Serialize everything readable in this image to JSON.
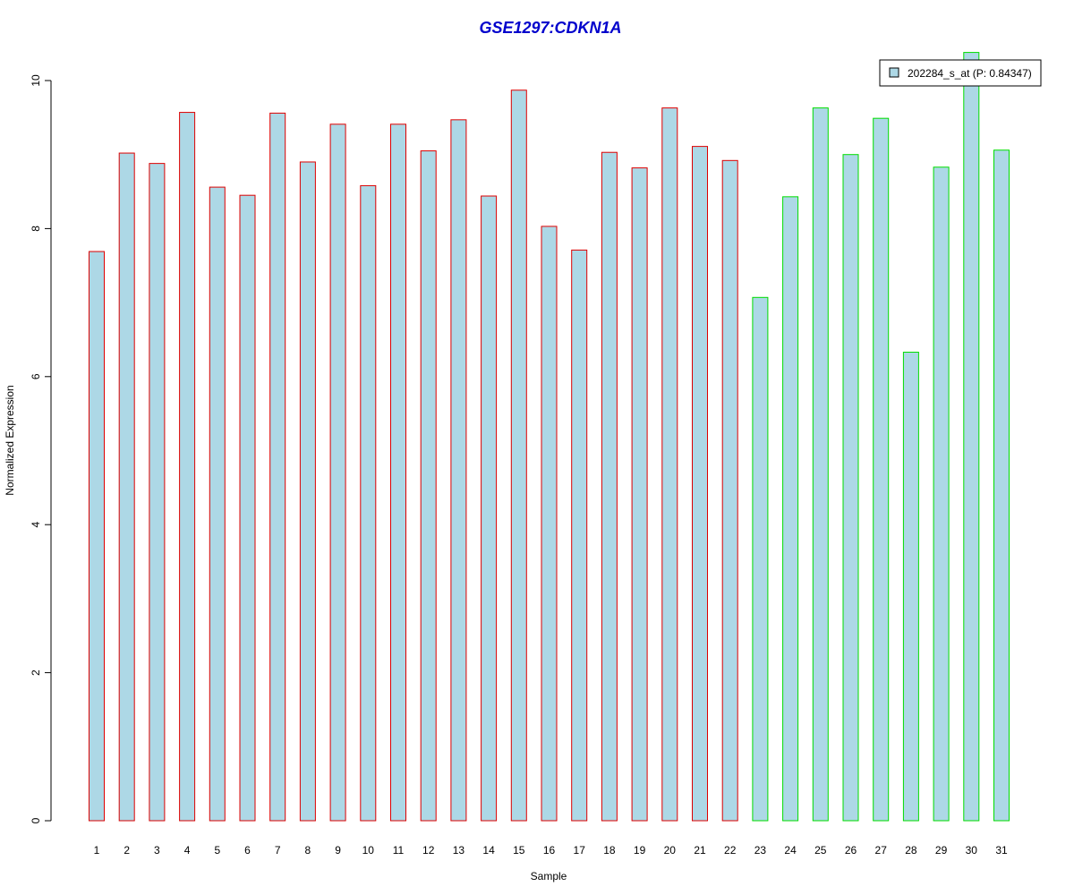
{
  "chart_data": {
    "type": "bar",
    "title": "GSE1297:CDKN1A",
    "xlabel": "Sample",
    "ylabel": "Normalized Expression",
    "ylim": [
      0,
      10
    ],
    "yticks": [
      0,
      2,
      4,
      6,
      8,
      10
    ],
    "grid": false,
    "legend_position": "top-right",
    "categories": [
      "1",
      "2",
      "3",
      "4",
      "5",
      "6",
      "7",
      "8",
      "9",
      "10",
      "11",
      "12",
      "13",
      "14",
      "15",
      "16",
      "17",
      "18",
      "19",
      "20",
      "21",
      "22",
      "23",
      "24",
      "25",
      "26",
      "27",
      "28",
      "29",
      "30",
      "31"
    ],
    "series": [
      {
        "name": "202284_s_at (P: 0.84347)",
        "values": [
          7.69,
          9.02,
          8.88,
          9.57,
          8.56,
          8.45,
          9.56,
          8.9,
          9.41,
          8.58,
          9.41,
          9.05,
          9.47,
          8.44,
          9.87,
          8.03,
          7.71,
          9.03,
          8.82,
          9.63,
          9.11,
          8.92,
          7.07,
          8.43,
          9.63,
          9.0,
          9.49,
          6.33,
          8.83,
          10.38,
          9.06
        ]
      }
    ],
    "groups": [
      {
        "samples": "1-22",
        "border_color": "#dd0000"
      },
      {
        "samples": "23-31",
        "border_color": "#00dd00"
      }
    ],
    "bar_fill": "#add8e6",
    "title_color": "#0000cc"
  }
}
